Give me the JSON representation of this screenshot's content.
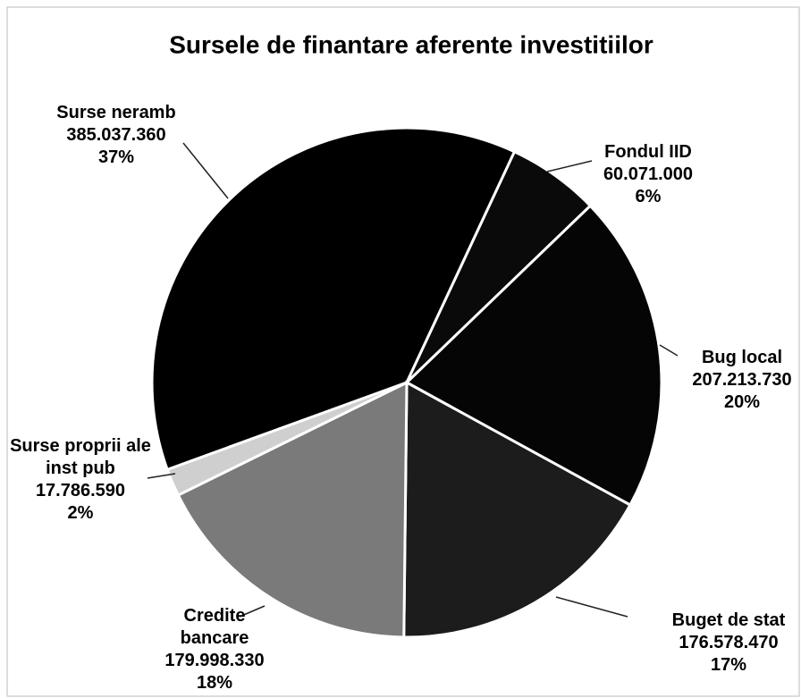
{
  "chart_data": {
    "type": "pie",
    "title": "Sursele de finantare aferente investitiilor",
    "categories": [
      "Surse neramb",
      "Fondul IID",
      "Bug local",
      "Buget de stat",
      "Credite bancare",
      "Surse proprii ale inst pub"
    ],
    "values": [
      385037360,
      60071000,
      207213730,
      176578470,
      179998330,
      17786590
    ],
    "value_labels": [
      "385.037.360",
      "60.071.000",
      "207.213.730",
      "176.578.470",
      "179.998.330",
      "17.786.590"
    ],
    "percentages": [
      37,
      6,
      20,
      17,
      18,
      2
    ],
    "percentage_labels": [
      "37%",
      "6%",
      "20%",
      "17%",
      "18%",
      "2%"
    ],
    "colors": [
      "#000000",
      "#0a0a0a",
      "#050505",
      "#1c1c1c",
      "#7a7a7a",
      "#cfcfcf"
    ]
  }
}
